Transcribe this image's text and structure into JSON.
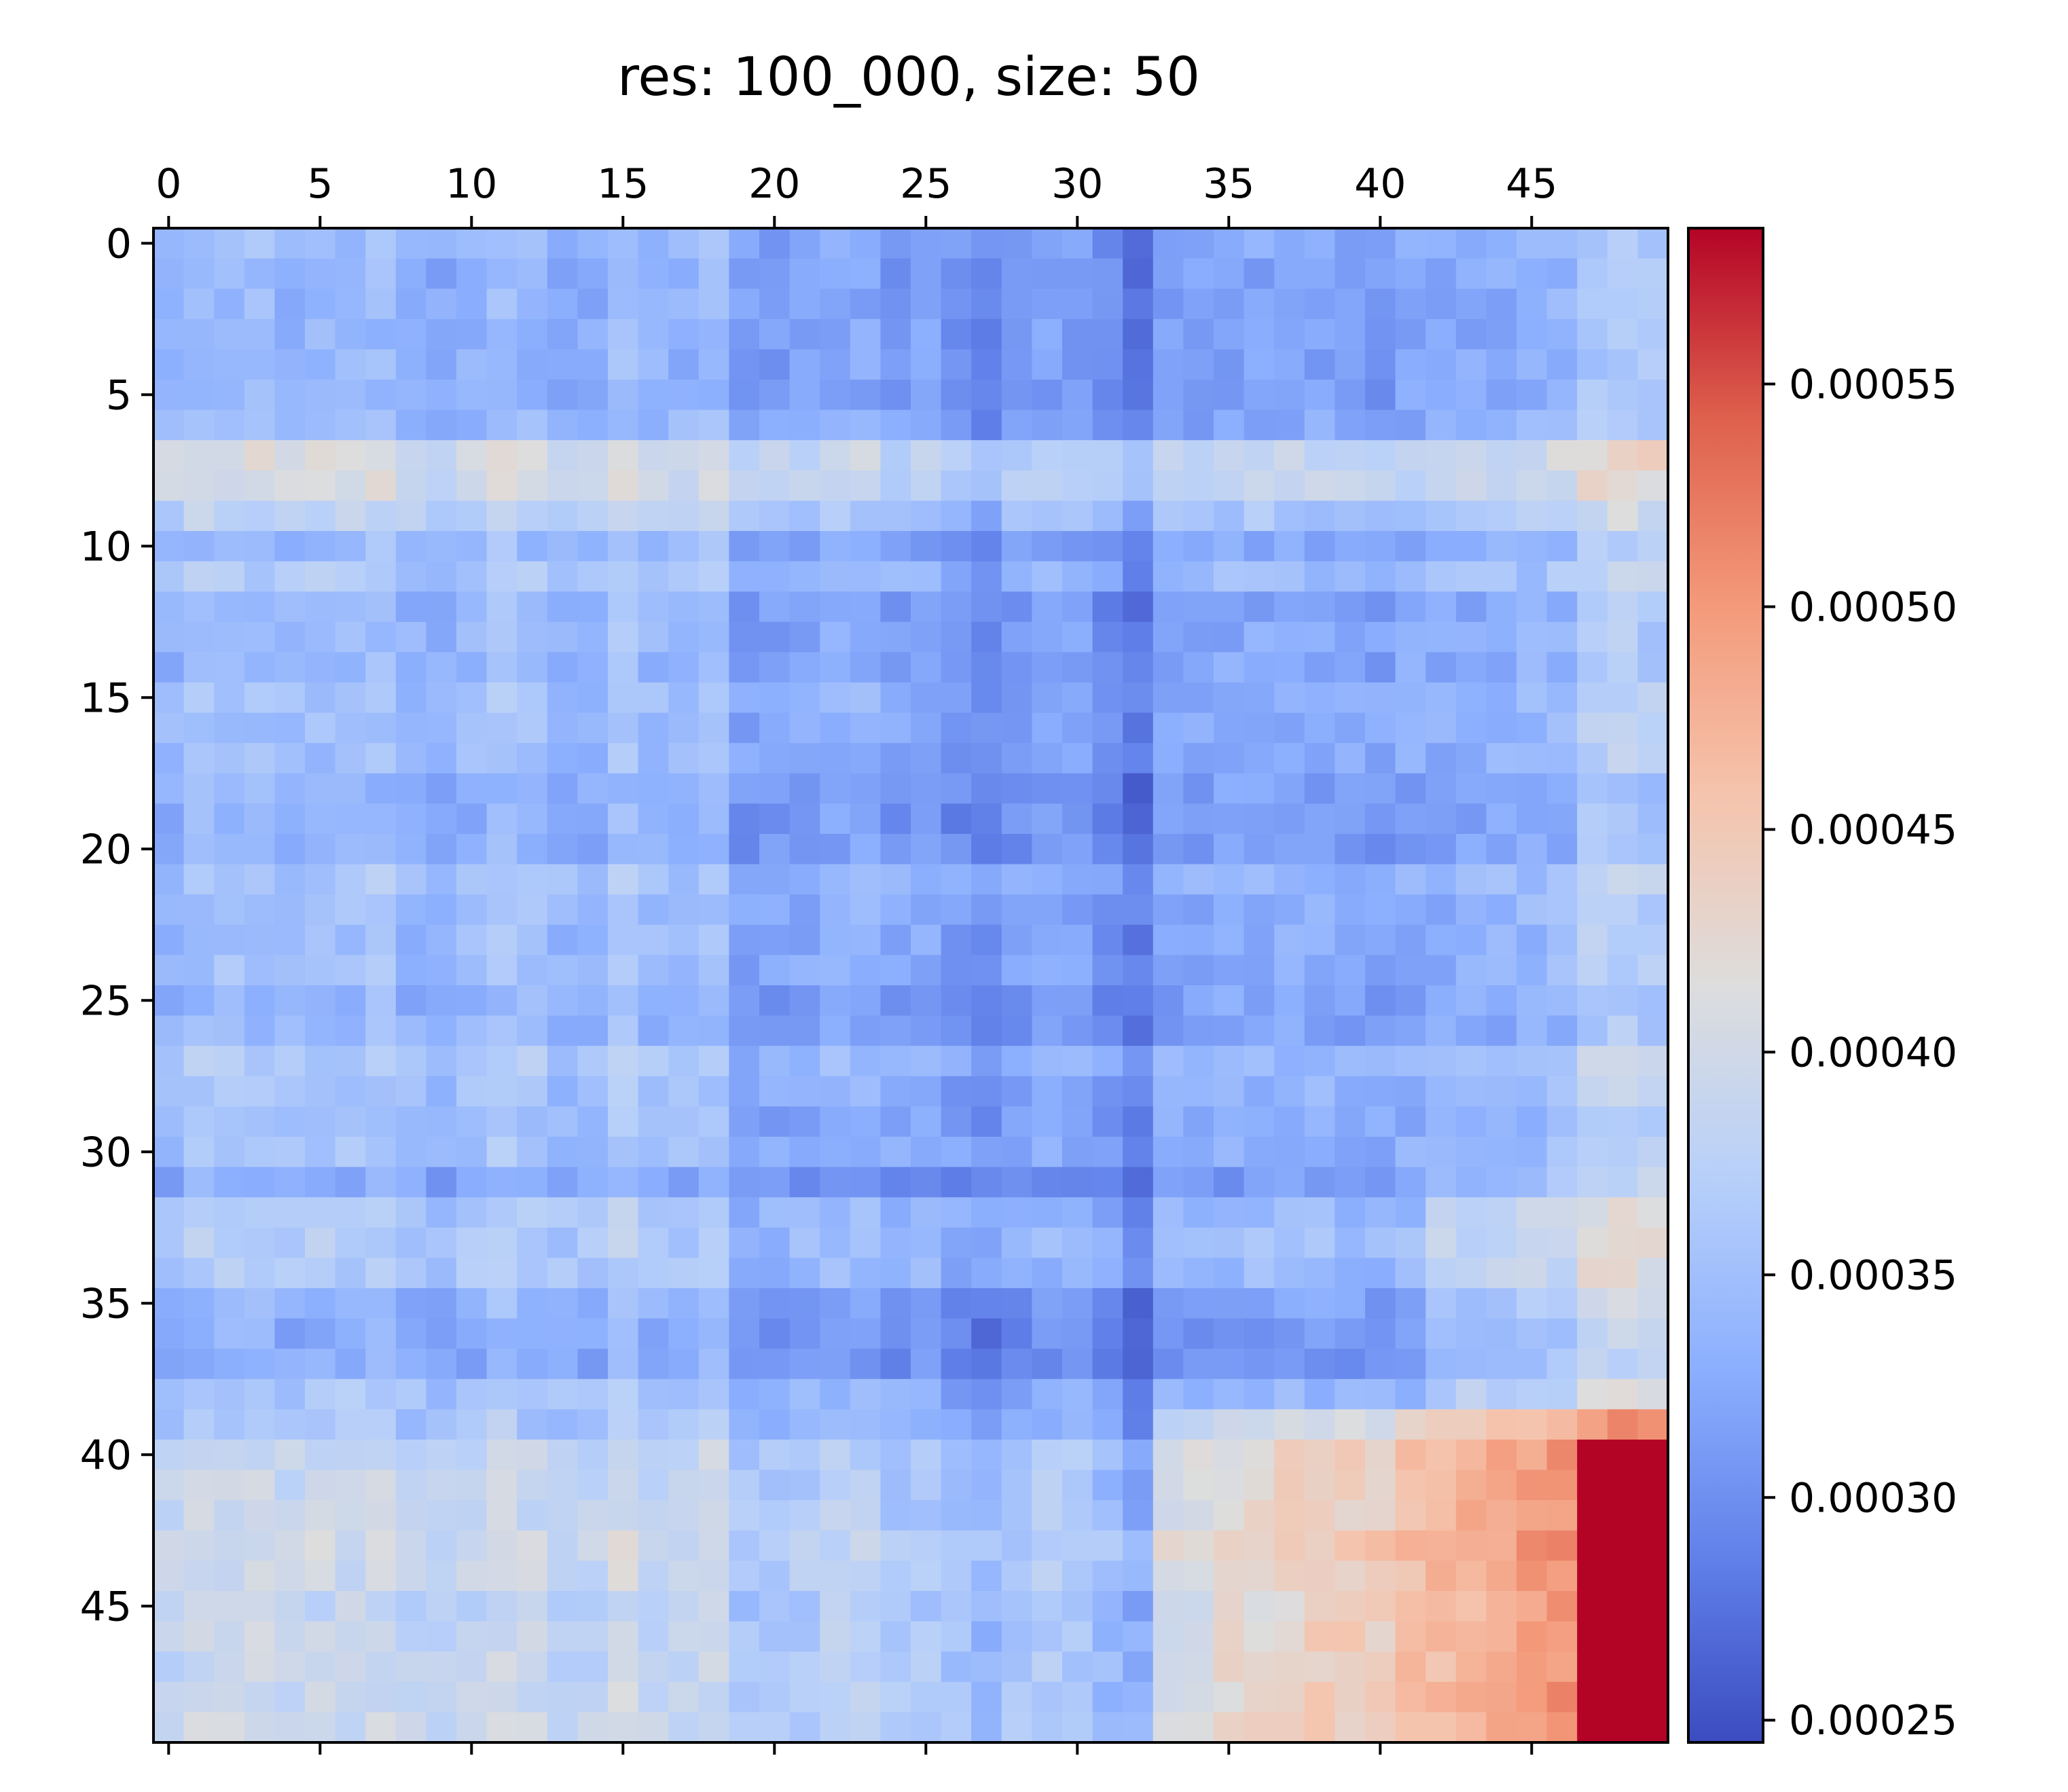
{
  "chart_data": {
    "type": "heatmap",
    "title": "res: 100_000, size: 50",
    "rows": 50,
    "cols": 50,
    "x_ticks": [
      0,
      5,
      10,
      15,
      20,
      25,
      30,
      35,
      40,
      45
    ],
    "y_ticks": [
      0,
      5,
      10,
      15,
      20,
      25,
      30,
      35,
      40,
      45
    ],
    "x_axis_position": "top",
    "colormap": "coolwarm",
    "colorbar": {
      "vmin": 0.000245,
      "vmax": 0.000585,
      "ticks": [
        0.00025,
        0.0003,
        0.00035,
        0.0004,
        0.00045,
        0.0005,
        0.00055
      ],
      "tick_labels": [
        "0.00025",
        "0.00030",
        "0.00035",
        "0.00040",
        "0.00045",
        "0.00050",
        "0.00055"
      ],
      "position": "right"
    },
    "grid": false,
    "value_model": {
      "description_units": "value ≈ 0.00034 + row/col effects",
      "base": 0.00034,
      "row_effects": [
        -1.5e-05,
        -2e-05,
        -2e-05,
        -2e-05,
        -2.2e-05,
        -2.2e-05,
        -1.5e-05,
        5e-05,
        4.5e-05,
        2e-05,
        -1.5e-05,
        5e-06,
        -2e-05,
        -1.5e-05,
        -1.5e-05,
        -5e-06,
        -1e-05,
        -1e-05,
        -2.5e-05,
        -2.5e-05,
        -2.5e-05,
        0.0,
        -1e-05,
        -1e-05,
        -1e-05,
        -2e-05,
        -2e-05,
        5e-06,
        -5e-06,
        -1e-05,
        -5e-06,
        -3e-05,
        5e-06,
        1e-05,
        5e-06,
        -2e-05,
        -3e-05,
        -3e-05,
        0.0,
        0.0,
        3e-05,
        3e-05,
        3e-05,
        4e-05,
        3.5e-05,
        2.5e-05,
        3e-05,
        3e-05,
        3e-05,
        3.5e-05
      ],
      "col_effects": [
        1e-05,
        2.5e-05,
        2.5e-05,
        2.5e-05,
        1.5e-05,
        2e-05,
        2e-05,
        2.5e-05,
        1e-05,
        5e-06,
        1.5e-05,
        3e-05,
        2e-05,
        1e-05,
        1e-05,
        3e-05,
        1.5e-05,
        1.5e-05,
        2.5e-05,
        -1e-05,
        -1e-05,
        -5e-06,
        5e-06,
        5e-06,
        -1e-05,
        -5e-06,
        -2e-05,
        -3e-05,
        -1.5e-05,
        -5e-06,
        -1e-05,
        -2.5e-05,
        -4.5e-05,
        -5e-06,
        -5e-06,
        0.0,
        0.0,
        0.0,
        0.0,
        -5e-06,
        -1e-05,
        0.0,
        0.0,
        5e-06,
        5e-06,
        1e-05,
        1.5e-05,
        4e-05,
        4.5e-05,
        4e-05
      ]
    }
  }
}
